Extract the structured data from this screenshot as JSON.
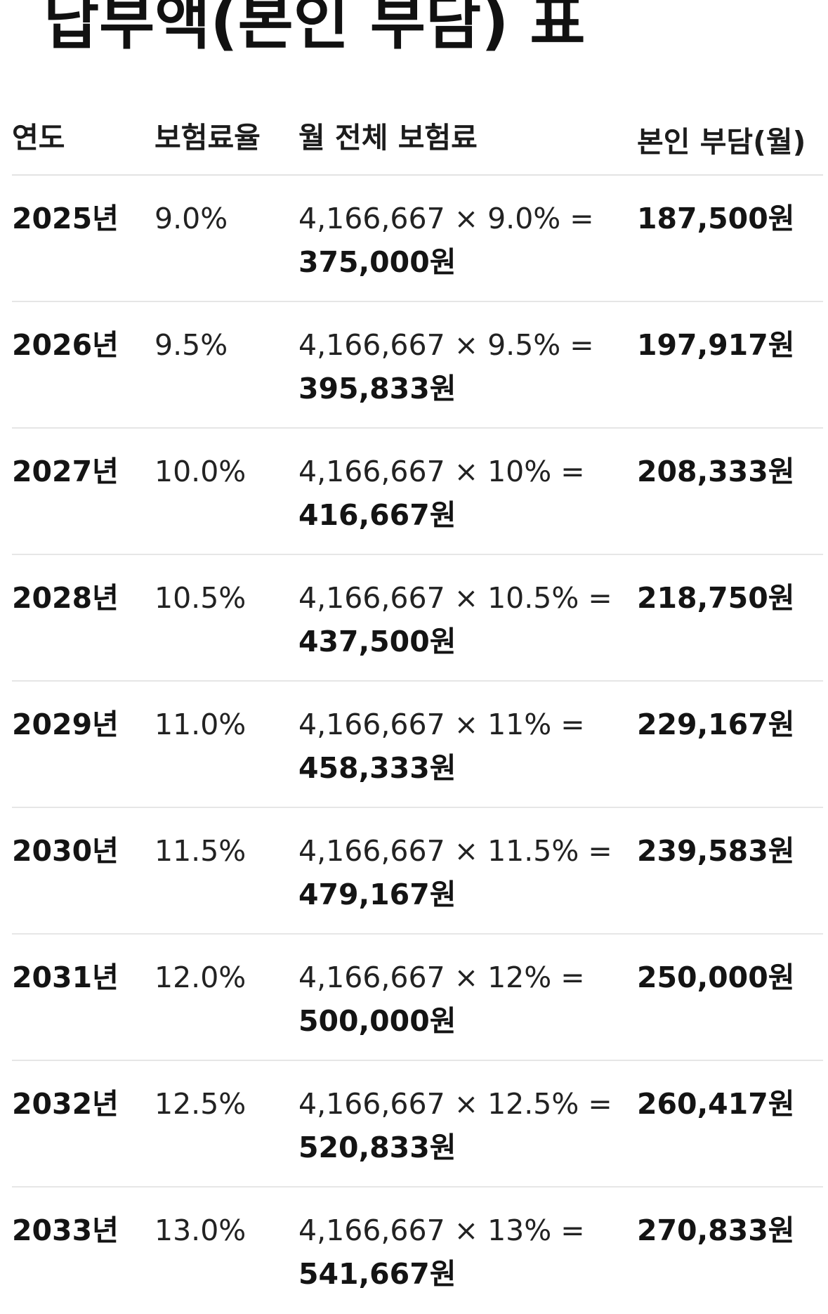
{
  "title": "납부액(본인 부담) 표",
  "table": {
    "headers": {
      "year": "연도",
      "rate": "보험료율",
      "total": "월 전체 보험료",
      "share": "본인 부담(월)"
    },
    "rows": [
      {
        "year": "2025년",
        "rate": "9.0%",
        "formula": "4,166,667 × 9.0% =",
        "total": "375,000원",
        "share": "187,500원"
      },
      {
        "year": "2026년",
        "rate": "9.5%",
        "formula": "4,166,667 × 9.5% =",
        "total": "395,833원",
        "share": "197,917원"
      },
      {
        "year": "2027년",
        "rate": "10.0%",
        "formula": "4,166,667 × 10% =",
        "total": "416,667원",
        "share": "208,333원"
      },
      {
        "year": "2028년",
        "rate": "10.5%",
        "formula": "4,166,667 × 10.5% =",
        "total": "437,500원",
        "share": "218,750원"
      },
      {
        "year": "2029년",
        "rate": "11.0%",
        "formula": "4,166,667 × 11% =",
        "total": "458,333원",
        "share": "229,167원"
      },
      {
        "year": "2030년",
        "rate": "11.5%",
        "formula": "4,166,667 × 11.5% =",
        "total": "479,167원",
        "share": "239,583원"
      },
      {
        "year": "2031년",
        "rate": "12.0%",
        "formula": "4,166,667 × 12% =",
        "total": "500,000원",
        "share": "250,000원"
      },
      {
        "year": "2032년",
        "rate": "12.5%",
        "formula": "4,166,667 × 12.5% =",
        "total": "520,833원",
        "share": "260,417원"
      },
      {
        "year": "2033년",
        "rate": "13.0%",
        "formula": "4,166,667 × 13% =",
        "total": "541,667원",
        "share": "270,833원"
      }
    ]
  }
}
